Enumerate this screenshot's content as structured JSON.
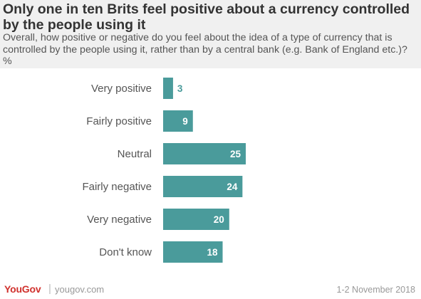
{
  "header": {
    "title": "Only one in ten Brits feel positive about a currency controlled by the people using it",
    "subtitle": "Overall, how positive or negative do you feel about the idea of a type of currency that is controlled by the people using it, rather than by a central bank (e.g. Bank of England etc.)? %"
  },
  "footer": {
    "logo_text": "YouGov",
    "site": "yougov.com",
    "date": "1-2 November  2018"
  },
  "colors": {
    "bar": "#4a9b9b",
    "header_bg": "#f0f0f0",
    "brand": "#d0312d"
  },
  "chart_data": {
    "type": "bar",
    "orientation": "horizontal",
    "categories": [
      "Very positive",
      "Fairly positive",
      "Neutral",
      "Fairly negative",
      "Very negative",
      "Don't know"
    ],
    "values": [
      3,
      9,
      25,
      24,
      20,
      18
    ],
    "title": "Only one in ten Brits feel positive about a currency controlled by the people using it",
    "xlabel": "",
    "ylabel": "",
    "xlim": [
      0,
      25
    ],
    "grid": false,
    "legend": "none"
  }
}
